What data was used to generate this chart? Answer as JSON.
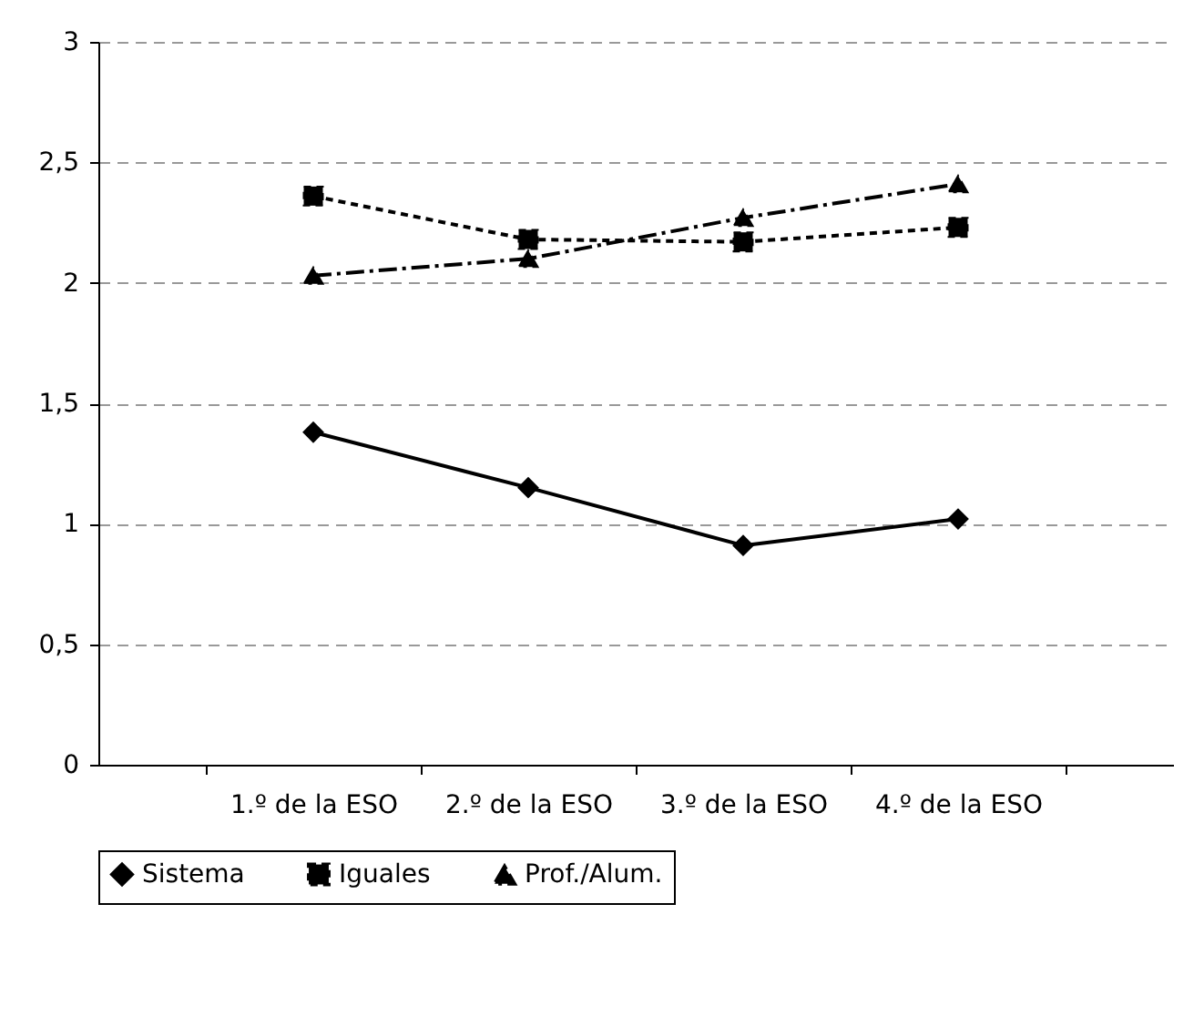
{
  "chart_data": {
    "type": "line",
    "categories": [
      "1.º de la ESO",
      "2.º de la ESO",
      "3.º de la ESO",
      "4.º de la ESO"
    ],
    "series": [
      {
        "name": "Sistema",
        "color": "#000000",
        "marker": "diamond",
        "line_style": "solid",
        "values": [
          1.38,
          1.15,
          0.91,
          1.02
        ]
      },
      {
        "name": "Iguales",
        "color": "#000000",
        "marker": "square",
        "line_style": "dotted",
        "values": [
          2.36,
          2.18,
          2.17,
          2.23
        ]
      },
      {
        "name": "Prof./Alum.",
        "color": "#000000",
        "marker": "triangle",
        "line_style": "dashed",
        "values": [
          2.03,
          2.1,
          2.27,
          2.41
        ]
      }
    ],
    "ylim": [
      0,
      3
    ],
    "yticks": [
      {
        "value": 0,
        "label": "0"
      },
      {
        "value": 0.5,
        "label": "0,5"
      },
      {
        "value": 1,
        "label": "1"
      },
      {
        "value": 1.5,
        "label": "1,5"
      },
      {
        "value": 2,
        "label": "2"
      },
      {
        "value": 2.5,
        "label": "2,5"
      },
      {
        "value": 3,
        "label": "3"
      }
    ],
    "grid": "y",
    "legend": "bottom"
  }
}
